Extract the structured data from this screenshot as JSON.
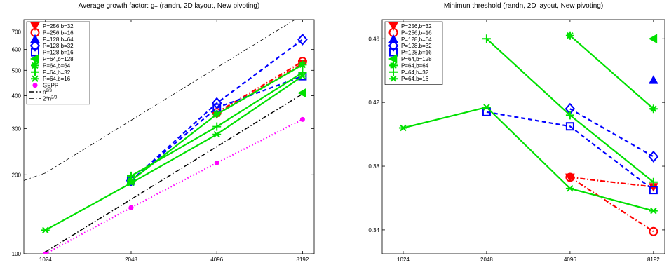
{
  "chart_data": [
    {
      "type": "line",
      "title": "Average growth factor: g",
      "title_subscript": "T",
      "title_suffix": " (randn, 2D layout, New pivoting)",
      "xlabel": "",
      "ylabel": "",
      "x_ticks": [
        "1024",
        "2048",
        "4096",
        "8192"
      ],
      "y_scale": "log",
      "y_ticks": [
        "100",
        "200",
        "300",
        "400",
        "500",
        "600",
        "700"
      ],
      "ylim": [
        100,
        780
      ],
      "legend_position": "top-left",
      "series": [
        {
          "name": "P=256,b=32",
          "color": "#ff0000",
          "style": "dashdot",
          "marker": "triangle-down",
          "points": [
            [
              4096,
              340
            ],
            [
              8192,
              530
            ]
          ]
        },
        {
          "name": "P=256,b=16",
          "color": "#ff0000",
          "style": "dashdot",
          "marker": "circle",
          "points": [
            [
              4096,
              345
            ],
            [
              8192,
              540
            ]
          ]
        },
        {
          "name": "P=128,b=64",
          "color": "#0000ff",
          "style": "dashed",
          "marker": "triangle-up",
          "points": []
        },
        {
          "name": "P=128,b=32",
          "color": "#0000ff",
          "style": "dashed",
          "marker": "diamond",
          "points": [
            [
              2048,
              190
            ],
            [
              4096,
              375
            ],
            [
              8192,
              655
            ]
          ]
        },
        {
          "name": "P=128,b=16",
          "color": "#0000ff",
          "style": "dashed",
          "marker": "square",
          "points": [
            [
              2048,
              190
            ],
            [
              4096,
              360
            ],
            [
              8192,
              475
            ]
          ]
        },
        {
          "name": "P=64,b=128",
          "color": "#00e000",
          "style": "solid",
          "marker": "triangle-left",
          "points": [
            [
              8192,
              410
            ]
          ]
        },
        {
          "name": "P=64,b=64",
          "color": "#00e000",
          "style": "solid",
          "marker": "star",
          "points": [
            [
              2048,
              190
            ],
            [
              4096,
              340
            ],
            [
              8192,
              525
            ]
          ]
        },
        {
          "name": "P=64,b=32",
          "color": "#00e000",
          "style": "solid",
          "marker": "plus",
          "points": [
            [
              2048,
              198
            ],
            [
              4096,
              305
            ],
            [
              8192,
              490
            ]
          ]
        },
        {
          "name": "P=64,b=16",
          "color": "#00e000",
          "style": "solid",
          "marker": "asterisk",
          "points": [
            [
              1024,
              123
            ],
            [
              2048,
              186
            ],
            [
              4096,
              285
            ],
            [
              8192,
              475
            ]
          ]
        },
        {
          "name": "GEPP",
          "color": "#ff00ff",
          "style": "dotted",
          "marker": "circle-filled",
          "points": [
            [
              1024,
              100
            ],
            [
              2048,
              150
            ],
            [
              4096,
              222
            ],
            [
              8192,
              325
            ]
          ]
        },
        {
          "name": "n",
          "name_sup": "2/3",
          "color": "#000000",
          "style": "dashdot",
          "marker": "none",
          "points": [
            [
              1024,
              101.6
            ],
            [
              2048,
              161.3
            ],
            [
              4096,
              256
            ],
            [
              8192,
              406.4
            ]
          ]
        },
        {
          "name": "2*n",
          "name_sup": "2/3",
          "color": "#000000",
          "style": "dashdot-thin",
          "marker": "none",
          "points": [
            [
              800,
              185
            ],
            [
              1024,
              203.2
            ],
            [
              2048,
              322.5
            ],
            [
              4096,
              512
            ],
            [
              8192,
              812.7
            ]
          ]
        }
      ]
    },
    {
      "type": "line",
      "title": "Minimun threshold (randn, 2D layout, New pivoting)",
      "xlabel": "",
      "ylabel": "",
      "x_ticks": [
        "1024",
        "2048",
        "4096",
        "8192"
      ],
      "y_scale": "linear",
      "y_ticks": [
        "0.34",
        "0.38",
        "0.42",
        "0.46"
      ],
      "ylim": [
        0.325,
        0.472
      ],
      "legend_position": "top-left",
      "series": [
        {
          "name": "P=256,b=32",
          "color": "#ff0000",
          "style": "dashdot",
          "marker": "triangle-down",
          "points": [
            [
              4096,
              0.373
            ],
            [
              8192,
              0.367
            ]
          ]
        },
        {
          "name": "P=256,b=16",
          "color": "#ff0000",
          "style": "dashdot",
          "marker": "circle",
          "points": [
            [
              4096,
              0.373
            ],
            [
              8192,
              0.339
            ]
          ]
        },
        {
          "name": "P=128,b=64",
          "color": "#0000ff",
          "style": "dashed",
          "marker": "triangle-up",
          "points": [
            [
              8192,
              0.434
            ]
          ]
        },
        {
          "name": "P=128,b=32",
          "color": "#0000ff",
          "style": "dashed",
          "marker": "diamond",
          "points": [
            [
              4096,
              0.416
            ],
            [
              8192,
              0.386
            ]
          ]
        },
        {
          "name": "P=128,b=16",
          "color": "#0000ff",
          "style": "dashed",
          "marker": "square",
          "points": [
            [
              2048,
              0.414
            ],
            [
              4096,
              0.405
            ],
            [
              8192,
              0.365
            ]
          ]
        },
        {
          "name": "P=64,b=128",
          "color": "#00e000",
          "style": "solid",
          "marker": "triangle-left",
          "points": [
            [
              8192,
              0.46
            ]
          ]
        },
        {
          "name": "P=64,b=64",
          "color": "#00e000",
          "style": "solid",
          "marker": "star",
          "points": [
            [
              4096,
              0.462
            ],
            [
              8192,
              0.416
            ]
          ]
        },
        {
          "name": "P=64,b=32",
          "color": "#00e000",
          "style": "solid",
          "marker": "plus",
          "points": [
            [
              2048,
              0.46
            ],
            [
              4096,
              0.412
            ],
            [
              8192,
              0.37
            ]
          ]
        },
        {
          "name": "P=64,b=16",
          "color": "#00e000",
          "style": "solid",
          "marker": "asterisk",
          "points": [
            [
              1024,
              0.404
            ],
            [
              2048,
              0.417
            ],
            [
              4096,
              0.366
            ],
            [
              8192,
              0.352
            ]
          ]
        }
      ]
    }
  ]
}
